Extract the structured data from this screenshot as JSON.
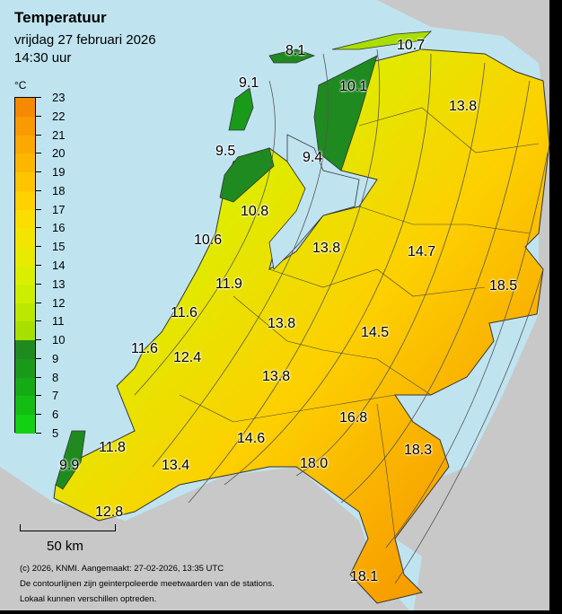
{
  "header": {
    "title": "Temperatuur",
    "date": "vrijdag 27 februari 2026",
    "time": "14:30 uur"
  },
  "legend": {
    "unit": "°C",
    "ticks": [
      "23",
      "22",
      "21",
      "20",
      "19",
      "18",
      "17",
      "16",
      "15",
      "14",
      "13",
      "12",
      "11",
      "10",
      "9",
      "8",
      "7",
      "6",
      "5"
    ],
    "colors": [
      "#f58a00",
      "#f89a00",
      "#fba800",
      "#fdb600",
      "#fec400",
      "#fed100",
      "#fcdd00",
      "#f4e500",
      "#e9ea00",
      "#dcee00",
      "#cdee00",
      "#bce800",
      "#a9df00",
      "#1f8a1f",
      "#1a9a1a",
      "#16ab16",
      "#14bd14",
      "#12d012",
      "#22e022"
    ]
  },
  "map": {
    "labels": [
      {
        "id": "texel-north",
        "text": "8.1"
      },
      {
        "id": "texel",
        "text": "9.1"
      },
      {
        "id": "den-helder",
        "text": "9.5"
      },
      {
        "id": "hoorn",
        "text": "9.4"
      },
      {
        "id": "leeuwarden",
        "text": "10.1"
      },
      {
        "id": "lauwersoog",
        "text": "10.7"
      },
      {
        "id": "groningen",
        "text": "13.8"
      },
      {
        "id": "berkhout",
        "text": "10.8"
      },
      {
        "id": "ijmuiden",
        "text": "10.6"
      },
      {
        "id": "schiphol",
        "text": "11.9"
      },
      {
        "id": "lelystad",
        "text": "13.8"
      },
      {
        "id": "heino",
        "text": "14.7"
      },
      {
        "id": "twenthe",
        "text": "18.5"
      },
      {
        "id": "rotterdam",
        "text": "11.6"
      },
      {
        "id": "de-bilt",
        "text": "13.8"
      },
      {
        "id": "deelen",
        "text": "14.5"
      },
      {
        "id": "hoek",
        "text": "11.6"
      },
      {
        "id": "cabauw",
        "text": "12.4"
      },
      {
        "id": "herwijnen",
        "text": "13.8"
      },
      {
        "id": "volkel",
        "text": "16.8"
      },
      {
        "id": "gilze",
        "text": "14.6"
      },
      {
        "id": "vlissingen",
        "text": "11.8"
      },
      {
        "id": "cadzand",
        "text": "9.9"
      },
      {
        "id": "woensdrecht",
        "text": "13.4"
      },
      {
        "id": "eindhoven",
        "text": "18.0"
      },
      {
        "id": "arcen",
        "text": "18.3"
      },
      {
        "id": "westdorpe",
        "text": "12.8"
      },
      {
        "id": "maastricht",
        "text": "18.1"
      }
    ]
  },
  "scale": {
    "label": "50 km"
  },
  "footer": {
    "line1": "(c) 2026, KNMI. Aangemaakt: 27-02-2026, 13:35 UTC",
    "line2": "De contourlijnen zijn geinterpoleerde meetwaarden van de stations.",
    "line3": "Lokaal kunnen verschillen optreden."
  }
}
